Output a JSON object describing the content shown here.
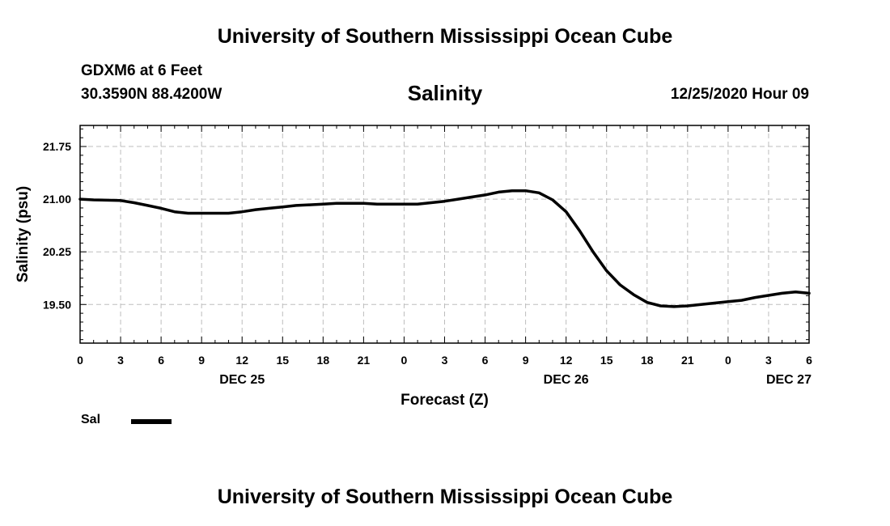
{
  "header": {
    "title": "University of Southern Mississippi Ocean Cube",
    "station": "GDXM6 at 6 Feet",
    "coords": "30.3590N 88.4200W",
    "datetime": "12/25/2020 Hour 09"
  },
  "footer": {
    "title": "University of Southern Mississippi Ocean Cube"
  },
  "legend": {
    "label": "Sal",
    "color": "#000000"
  },
  "chart_data": {
    "type": "line",
    "title": "Salinity",
    "xlabel": "Forecast (Z)",
    "ylabel": "Salinity (psu)",
    "xlim": [
      0,
      54
    ],
    "ylim": [
      18.95,
      22.05
    ],
    "y_ticks": [
      "19.50",
      "20.25",
      "21.00",
      "21.75"
    ],
    "y_tick_values": [
      19.5,
      20.25,
      21.0,
      21.75
    ],
    "x_tick_labels": [
      "0",
      "3",
      "6",
      "9",
      "12",
      "15",
      "18",
      "21",
      "0",
      "3",
      "6",
      "9",
      "12",
      "15",
      "18",
      "21",
      "0",
      "3",
      "6"
    ],
    "x_tick_hours": [
      0,
      3,
      6,
      9,
      12,
      15,
      18,
      21,
      24,
      27,
      30,
      33,
      36,
      39,
      42,
      45,
      48,
      51,
      54
    ],
    "date_labels": [
      {
        "hour": 12,
        "label": "DEC 25"
      },
      {
        "hour": 36,
        "label": "DEC 26"
      },
      {
        "hour": 52.5,
        "label": "DEC 27"
      }
    ],
    "grid": true,
    "series": [
      {
        "name": "Sal",
        "color": "#000000",
        "x": [
          0,
          1,
          2,
          3,
          4,
          5,
          6,
          7,
          8,
          9,
          10,
          11,
          12,
          13,
          14,
          15,
          16,
          17,
          18,
          19,
          20,
          21,
          22,
          23,
          24,
          25,
          26,
          27,
          28,
          29,
          30,
          31,
          32,
          33,
          34,
          35,
          36,
          37,
          38,
          39,
          40,
          41,
          42,
          43,
          44,
          45,
          46,
          47,
          48,
          49,
          50,
          51,
          52,
          53,
          54
        ],
        "values": [
          21.0,
          20.99,
          20.985,
          20.98,
          20.95,
          20.91,
          20.87,
          20.82,
          20.8,
          20.8,
          20.8,
          20.8,
          20.82,
          20.85,
          20.87,
          20.89,
          20.91,
          20.92,
          20.93,
          20.94,
          20.94,
          20.94,
          20.93,
          20.93,
          20.93,
          20.93,
          20.95,
          20.97,
          21.0,
          21.03,
          21.06,
          21.1,
          21.12,
          21.12,
          21.09,
          20.99,
          20.82,
          20.55,
          20.25,
          19.98,
          19.78,
          19.64,
          19.53,
          19.48,
          19.47,
          19.48,
          19.5,
          19.52,
          19.54,
          19.56,
          19.6,
          19.63,
          19.66,
          19.68,
          19.66
        ]
      }
    ]
  }
}
